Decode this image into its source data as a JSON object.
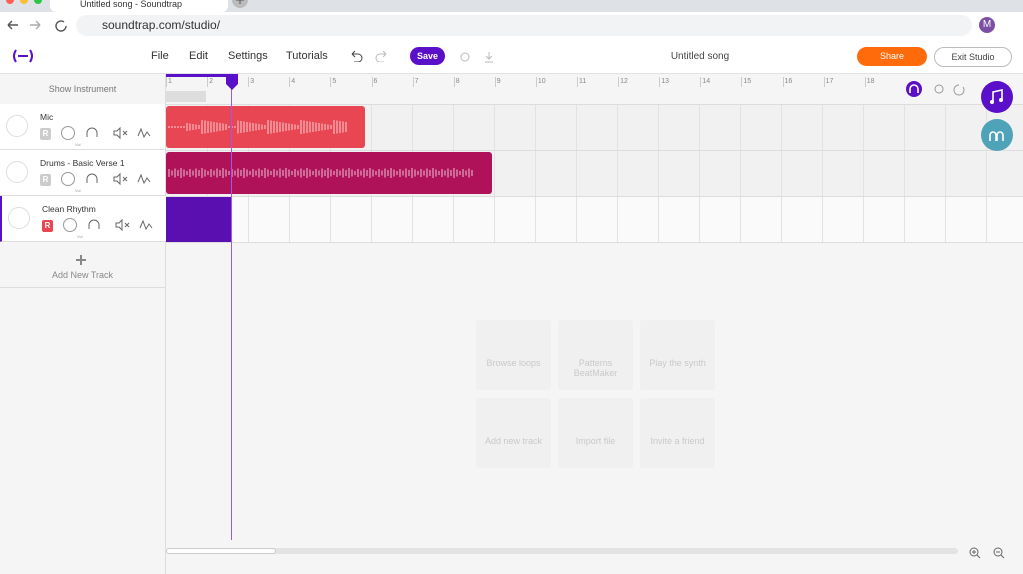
{
  "browser": {
    "tab_title": "Untitled song - Soundtrap",
    "url": "soundtrap.com/studio/",
    "profile": "M"
  },
  "menu": [
    "File",
    "Edit",
    "Settings",
    "Tutorials"
  ],
  "save": "Save",
  "song_title": "Untitled song",
  "share": "Share",
  "exit": "Exit Studio",
  "show_instrument": "Show Instrument",
  "ruler": [
    1,
    2,
    3,
    4,
    5,
    6,
    7,
    8,
    9,
    10,
    11,
    12,
    13,
    14,
    15,
    16,
    17,
    18
  ],
  "tracks": [
    {
      "name": "Mic",
      "record": "R",
      "volume": "Vol"
    },
    {
      "name": "Drums - Basic Verse 1",
      "record": "R",
      "volume": "Vol"
    },
    {
      "name": "Clean Rhythm",
      "record": "R",
      "volume": "Vol"
    }
  ],
  "add_track": "Add New Track",
  "tiles": [
    "Browse loops",
    "Patterns BeatMaker",
    "Play the synth",
    "Add new track",
    "Import file",
    "Invite a friend"
  ]
}
